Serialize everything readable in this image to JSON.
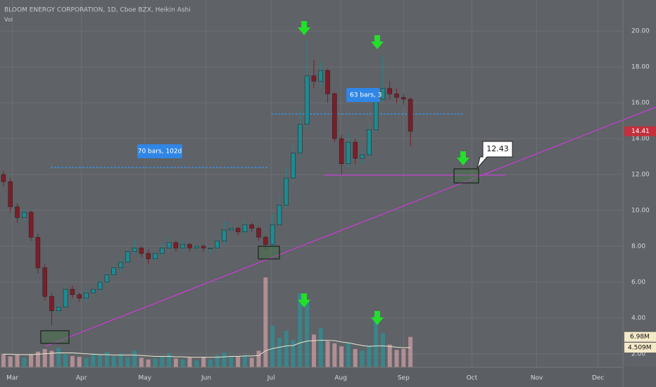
{
  "chart_data": {
    "type": "candlestick",
    "title": "BLOOM ENERGY CORPORATION, 1D, Cboe BZX, Heikin Ashi",
    "volume_title": "Vol",
    "up_color": "#1e8b92",
    "down_color": "#7b1e2a",
    "volume_up_color": "#2f8e93",
    "volume_down_color": "#c39aa0",
    "volume_ma_color": "#e8e6d0",
    "open": [
      12.0,
      11.6,
      10.2,
      9.6,
      9.9,
      8.5,
      6.8,
      5.2,
      4.4,
      4.6,
      5.6,
      5.3,
      5.1,
      5.4,
      5.6,
      6.0,
      6.4,
      6.8,
      7.1,
      7.7,
      7.9,
      7.6,
      7.3,
      7.6,
      7.9,
      8.2,
      7.9,
      8.1,
      7.9,
      8.0,
      7.9,
      7.9,
      8.3,
      8.9,
      9.0,
      8.8,
      9.2,
      9.0,
      8.5,
      8.1,
      9.2,
      10.3,
      11.8,
      13.2,
      14.8,
      17.5,
      17.2,
      17.8,
      16.5,
      14.0,
      12.6,
      13.8,
      12.9,
      13.1,
      14.5,
      16.2,
      16.8,
      16.5,
      16.3,
      16.2
    ],
    "high": [
      12.2,
      11.8,
      10.4,
      10.1,
      10.0,
      8.7,
      7.0,
      5.4,
      4.8,
      5.8,
      5.8,
      5.4,
      5.6,
      5.8,
      6.2,
      6.6,
      7.0,
      7.3,
      8.0,
      8.4,
      8.0,
      7.8,
      7.8,
      8.2,
      8.5,
      8.3,
      8.3,
      8.2,
      8.1,
      8.1,
      8.0,
      8.5,
      9.4,
      9.3,
      9.1,
      9.4,
      9.3,
      9.1,
      8.6,
      9.8,
      10.8,
      12.4,
      13.8,
      15.6,
      19.5,
      18.4,
      18.3,
      17.9,
      16.6,
      14.2,
      14.3,
      14.0,
      13.4,
      14.8,
      16.5,
      18.6,
      17.2,
      16.8,
      16.5,
      16.3
    ],
    "low": [
      11.3,
      9.9,
      9.3,
      9.4,
      8.3,
      6.5,
      5.0,
      3.6,
      4.2,
      4.5,
      5.1,
      4.9,
      4.9,
      5.2,
      5.4,
      5.8,
      6.2,
      6.6,
      6.9,
      7.5,
      7.4,
      7.0,
      7.1,
      7.4,
      7.7,
      7.7,
      7.7,
      7.7,
      7.8,
      7.7,
      7.6,
      7.7,
      8.1,
      8.7,
      8.6,
      8.6,
      8.8,
      8.3,
      7.8,
      7.9,
      9.0,
      10.1,
      11.5,
      12.9,
      14.5,
      16.8,
      16.9,
      16.0,
      13.8,
      12.0,
      12.4,
      12.6,
      12.6,
      12.9,
      14.3,
      16.0,
      16.2,
      16.0,
      15.9,
      13.6
    ],
    "close": [
      11.6,
      10.2,
      9.6,
      9.9,
      8.5,
      6.8,
      5.2,
      4.4,
      4.6,
      5.6,
      5.3,
      5.1,
      5.4,
      5.6,
      6.0,
      6.4,
      6.8,
      7.1,
      7.7,
      7.9,
      7.6,
      7.3,
      7.6,
      7.9,
      8.2,
      7.9,
      8.1,
      7.9,
      8.0,
      7.9,
      7.9,
      8.3,
      8.9,
      9.0,
      8.8,
      9.2,
      9.0,
      8.5,
      8.1,
      9.2,
      10.3,
      11.8,
      13.2,
      14.8,
      17.5,
      17.2,
      17.8,
      16.5,
      14.0,
      12.6,
      13.8,
      12.9,
      13.1,
      14.5,
      16.2,
      16.8,
      16.5,
      16.3,
      16.2,
      14.41
    ],
    "volume": [
      3.1,
      2.5,
      2.8,
      2.2,
      3.0,
      3.6,
      4.2,
      3.8,
      4.5,
      3.0,
      2.6,
      2.4,
      2.2,
      3.0,
      2.8,
      3.5,
      2.6,
      3.2,
      2.4,
      3.8,
      2.2,
      1.8,
      2.0,
      2.6,
      3.2,
      2.0,
      1.8,
      2.2,
      1.6,
      2.4,
      1.8,
      2.8,
      3.4,
      2.6,
      2.4,
      2.8,
      2.2,
      3.8,
      20.6,
      9.5,
      6.8,
      8.4,
      6.2,
      17.0,
      15.2,
      7.5,
      9.0,
      6.0,
      5.5,
      4.8,
      5.6,
      4.2,
      3.8,
      5.0,
      12.0,
      7.8,
      5.2,
      4.0,
      4.2,
      6.98
    ],
    "volume_ma": [
      3.0,
      3.0,
      2.9,
      2.9,
      2.9,
      3.0,
      3.1,
      3.2,
      3.3,
      3.3,
      3.3,
      3.2,
      3.1,
      3.0,
      2.9,
      2.9,
      2.8,
      2.8,
      2.8,
      2.8,
      2.7,
      2.6,
      2.5,
      2.5,
      2.5,
      2.4,
      2.4,
      2.3,
      2.3,
      2.3,
      2.3,
      2.3,
      2.4,
      2.5,
      2.5,
      2.6,
      2.6,
      2.7,
      3.8,
      4.3,
      4.6,
      4.9,
      5.0,
      5.6,
      6.0,
      6.1,
      6.2,
      6.2,
      6.1,
      5.8,
      5.6,
      5.3,
      5.0,
      4.8,
      4.9,
      4.9,
      4.8,
      4.6,
      4.5,
      4.509
    ],
    "volume_last_label": "6.98M",
    "volume_ma_label": "4.509M",
    "range_labels": [
      "70 bars, 102d",
      "63 bars, 3"
    ],
    "target_label": "12.43",
    "xlim": [
      -0.5,
      89.8
    ],
    "xticks": [
      {
        "value": 1.3,
        "label": "Mar"
      },
      {
        "value": 11.3,
        "label": "Apr"
      },
      {
        "value": 20.5,
        "label": "May"
      },
      {
        "value": 29.4,
        "label": "Jun"
      },
      {
        "value": 38.8,
        "label": "Jul"
      },
      {
        "value": 48.9,
        "label": "Aug"
      },
      {
        "value": 58,
        "label": "Sep"
      },
      {
        "value": 67.9,
        "label": "Oct"
      },
      {
        "value": 77.3,
        "label": "Nov"
      },
      {
        "value": 86.2,
        "label": "Dec"
      }
    ],
    "ylim": [
      1.25,
      21.73
    ],
    "yticks": [
      {
        "value": 20,
        "label": "20.00"
      },
      {
        "value": 18,
        "label": "18.00"
      },
      {
        "value": 16,
        "label": "16.00"
      },
      {
        "value": 14,
        "label": "14.00"
      },
      {
        "value": 12,
        "label": "12.00"
      },
      {
        "value": 10,
        "label": "10.00"
      },
      {
        "value": 8,
        "label": "8.00"
      },
      {
        "value": 6,
        "label": "6.00"
      },
      {
        "value": 4,
        "label": "4.00"
      },
      {
        "value": 2,
        "label": "2.00"
      }
    ],
    "y2lim": [
      0,
      84.2
    ],
    "grid": true
  }
}
